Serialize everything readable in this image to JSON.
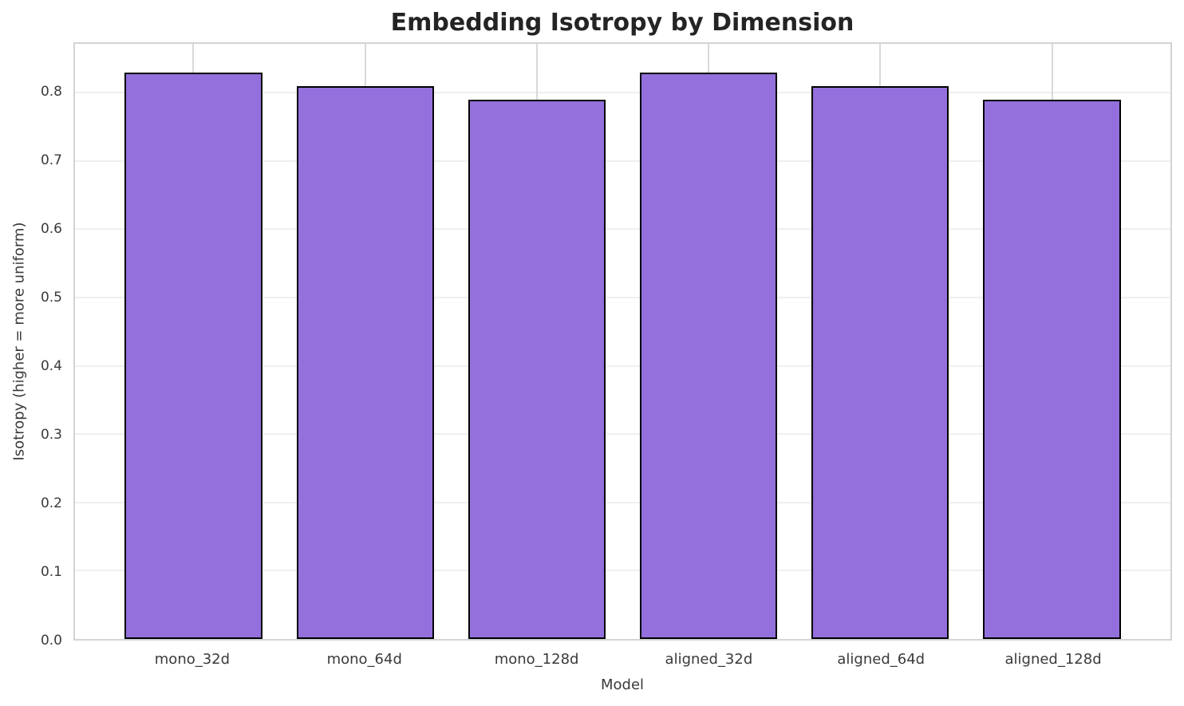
{
  "chart_data": {
    "type": "bar",
    "title": "Embedding Isotropy by Dimension",
    "xlabel": "Model",
    "ylabel": "Isotropy (higher = more uniform)",
    "categories": [
      "mono_32d",
      "mono_64d",
      "mono_128d",
      "aligned_32d",
      "aligned_64d",
      "aligned_128d"
    ],
    "values": [
      0.83,
      0.81,
      0.79,
      0.83,
      0.81,
      0.79
    ],
    "yticks": [
      0.0,
      0.1,
      0.2,
      0.3,
      0.4,
      0.5,
      0.6,
      0.7,
      0.8
    ],
    "ytick_labels": [
      "0.0",
      "0.1",
      "0.2",
      "0.3",
      "0.4",
      "0.5",
      "0.6",
      "0.7",
      "0.8"
    ],
    "ylim": [
      0,
      0.8715
    ],
    "xlim": [
      -0.69,
      5.69
    ],
    "bar_width": 0.8,
    "grid": true,
    "legend": "none",
    "colors": {
      "bar_fill": "#9370DB",
      "bar_edge": "#000000",
      "grid_h": "#efefef",
      "grid_v": "#d9d9d9",
      "spine": "#d4d4d4",
      "title_text": "#242424",
      "tick_text": "#3a3a3a",
      "background": "#ffffff"
    }
  }
}
